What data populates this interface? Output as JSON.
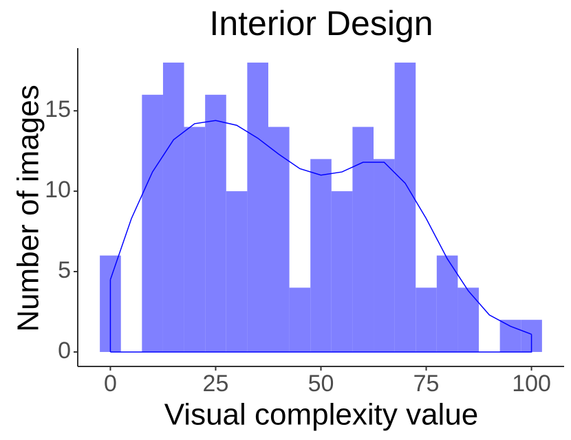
{
  "chart_data": {
    "type": "histogram",
    "title": "Interior Design",
    "x_label": "Visual complexity value",
    "y_label": "Number of images",
    "bins": [
      -2.5,
      2.5,
      7.5,
      12.5,
      17.5,
      22.5,
      27.5,
      32.5,
      37.5,
      42.5,
      47.5,
      52.5,
      57.5,
      62.5,
      67.5,
      72.5,
      77.5,
      82.5,
      87.5,
      92.5,
      97.5,
      102.5
    ],
    "values": [
      6,
      0,
      16,
      18,
      14,
      16,
      10,
      18,
      14,
      4,
      12,
      10,
      14,
      12,
      18,
      4,
      6,
      4,
      0,
      2,
      2
    ],
    "color": "#8080ff",
    "density": {
      "color": "#0000ff",
      "x": [
        0,
        5,
        10,
        15,
        20,
        25,
        30,
        35,
        40,
        45,
        50,
        55,
        60,
        65,
        70,
        75,
        80,
        85,
        90,
        95,
        100
      ],
      "values": [
        4.5,
        8.3,
        11.2,
        13.2,
        14.2,
        14.4,
        14.1,
        13.3,
        12.3,
        11.4,
        11.0,
        11.2,
        11.8,
        11.8,
        10.5,
        8.3,
        5.8,
        3.8,
        2.3,
        1.6,
        1.1
      ]
    },
    "xlim": [
      -7.75,
      107.75
    ],
    "ylim": [
      -0.9,
      18.9
    ],
    "xticks": [
      0,
      25,
      50,
      75,
      100
    ],
    "yticks": [
      0,
      5,
      10,
      15
    ]
  }
}
